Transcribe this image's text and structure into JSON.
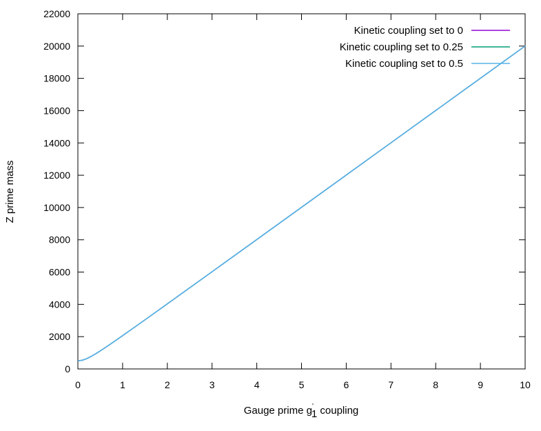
{
  "chart_data": {
    "type": "line",
    "title": "",
    "xlabel": "Gauge prime g",
    "xlabel_sup": "'",
    "xlabel_sub": "1",
    "xlabel_suffix": " coupling",
    "ylabel": "Z prime mass",
    "xlim": [
      0,
      10
    ],
    "ylim": [
      0,
      22000
    ],
    "xticks": [
      0,
      1,
      2,
      3,
      4,
      5,
      6,
      7,
      8,
      9,
      10
    ],
    "yticks": [
      0,
      2000,
      4000,
      6000,
      8000,
      10000,
      12000,
      14000,
      16000,
      18000,
      20000,
      22000
    ],
    "grid": false,
    "legend_position": "top-right",
    "series": [
      {
        "name": "Kinetic coupling set to 0",
        "color": "#9400d3",
        "x": [
          0,
          0.1,
          0.2,
          0.3,
          0.4,
          0.5,
          0.6,
          0.8,
          1,
          1.5,
          2,
          3,
          4,
          5,
          6,
          7,
          8,
          9,
          10
        ],
        "y": [
          500,
          539,
          640,
          781,
          943,
          1118,
          1300,
          1677,
          2062,
          3041,
          4031,
          6021,
          8016,
          10012,
          12010,
          14009,
          16008,
          18007,
          20006
        ]
      },
      {
        "name": "Kinetic coupling set to 0.25",
        "color": "#009e73",
        "x": [
          0,
          0.1,
          0.2,
          0.3,
          0.4,
          0.5,
          0.6,
          0.8,
          1,
          1.5,
          2,
          3,
          4,
          5,
          6,
          7,
          8,
          9,
          10
        ],
        "y": [
          500,
          539,
          640,
          781,
          943,
          1118,
          1300,
          1677,
          2062,
          3041,
          4031,
          6021,
          8016,
          10012,
          12010,
          14009,
          16008,
          18007,
          20006
        ]
      },
      {
        "name": "Kinetic coupling set to 0.5",
        "color": "#56b4e9",
        "x": [
          0,
          0.1,
          0.2,
          0.3,
          0.4,
          0.5,
          0.6,
          0.8,
          1,
          1.5,
          2,
          3,
          4,
          5,
          6,
          7,
          8,
          9,
          10
        ],
        "y": [
          500,
          539,
          640,
          781,
          943,
          1118,
          1300,
          1677,
          2062,
          3041,
          4031,
          6021,
          8016,
          10012,
          12010,
          14009,
          16008,
          18007,
          20006
        ]
      }
    ]
  }
}
